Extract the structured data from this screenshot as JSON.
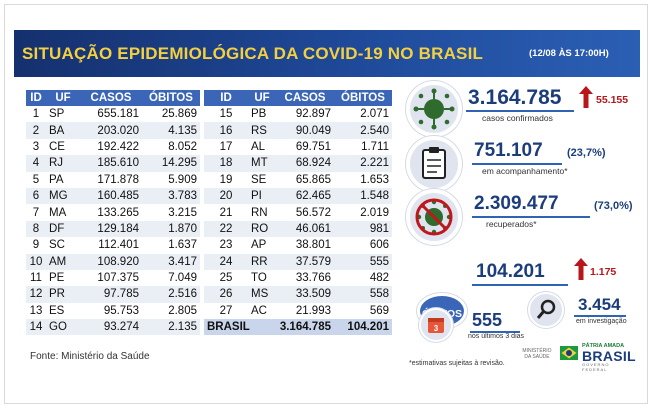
{
  "header": {
    "title": "SITUAÇÃO EPIDEMIOLÓGICA DA COVID-19 NO BRASIL",
    "date": "(12/08 ÀS 17:00H)"
  },
  "table": {
    "columns": [
      "ID",
      "UF",
      "CASOS",
      "ÓBITOS"
    ],
    "left_rows": [
      [
        "1",
        "SP",
        "655.181",
        "25.869"
      ],
      [
        "2",
        "BA",
        "203.020",
        "4.135"
      ],
      [
        "3",
        "CE",
        "192.422",
        "8.052"
      ],
      [
        "4",
        "RJ",
        "185.610",
        "14.295"
      ],
      [
        "5",
        "PA",
        "171.878",
        "5.909"
      ],
      [
        "6",
        "MG",
        "160.485",
        "3.783"
      ],
      [
        "7",
        "MA",
        "133.265",
        "3.215"
      ],
      [
        "8",
        "DF",
        "129.184",
        "1.870"
      ],
      [
        "9",
        "SC",
        "112.401",
        "1.637"
      ],
      [
        "10",
        "AM",
        "108.920",
        "3.417"
      ],
      [
        "11",
        "PE",
        "107.375",
        "7.049"
      ],
      [
        "12",
        "PR",
        "97.785",
        "2.516"
      ],
      [
        "13",
        "ES",
        "95.753",
        "2.805"
      ],
      [
        "14",
        "GO",
        "93.274",
        "2.135"
      ]
    ],
    "right_rows": [
      [
        "15",
        "PB",
        "92.897",
        "2.071"
      ],
      [
        "16",
        "RS",
        "90.049",
        "2.540"
      ],
      [
        "17",
        "AL",
        "69.751",
        "1.711"
      ],
      [
        "18",
        "MT",
        "68.924",
        "2.221"
      ],
      [
        "19",
        "SE",
        "65.865",
        "1.653"
      ],
      [
        "20",
        "PI",
        "62.465",
        "1.548"
      ],
      [
        "21",
        "RN",
        "56.572",
        "2.019"
      ],
      [
        "22",
        "RO",
        "46.061",
        "981"
      ],
      [
        "23",
        "AP",
        "38.801",
        "606"
      ],
      [
        "24",
        "RR",
        "37.579",
        "555"
      ],
      [
        "25",
        "TO",
        "33.766",
        "482"
      ],
      [
        "26",
        "MS",
        "33.509",
        "558"
      ],
      [
        "27",
        "AC",
        "21.993",
        "569"
      ]
    ],
    "total": {
      "label": "BRASIL",
      "casos": "3.164.785",
      "obitos": "104.201"
    }
  },
  "stats": {
    "confirmed": {
      "value": "3.164.785",
      "caption": "casos confirmados",
      "increase": "55.155"
    },
    "monitoring": {
      "value": "751.107",
      "percent": "(23,7%)",
      "caption": "em acompanhamento*"
    },
    "recovered": {
      "value": "2.309.477",
      "percent": "(73,0%)",
      "caption": "recuperados*"
    },
    "deaths": {
      "badge": "ÓBITOS",
      "value": "104.201",
      "increase": "1.175"
    },
    "last3days": {
      "value": "555",
      "caption": "nos últimos 3 dias"
    },
    "investigation": {
      "value": "3.454",
      "caption": "em investigação"
    }
  },
  "footer": {
    "source": "Fonte: Ministério da Saúde",
    "note": "*estimativas sujeitas à revisão.",
    "ministerio": "MINISTÉRIO DA SAÚDE",
    "logo_top": "PÁTRIA AMADA",
    "logo_main": "BRASIL",
    "logo_bottom": "GOVERNO FEDERAL"
  },
  "colors": {
    "header_bg": "#1f4a9a",
    "title_yellow": "#f4d03f",
    "table_header": "#3b66b8",
    "value_blue": "#1c3d7c",
    "increase_red": "#b8161a",
    "virus_green": "#2e6b2c"
  }
}
